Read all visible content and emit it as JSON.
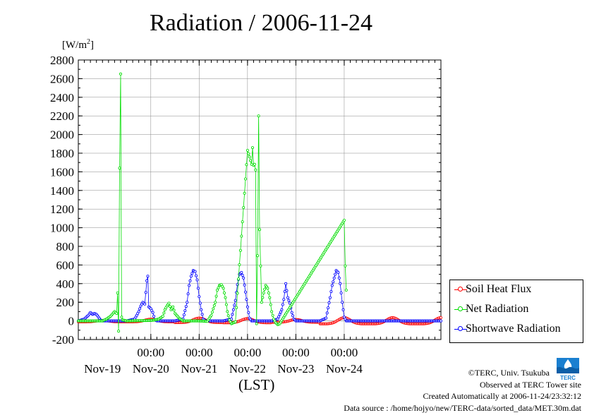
{
  "title": "Radiation / 2006-11-24",
  "unit_label": "[W/m",
  "unit_sup": "2",
  "unit_close": "]",
  "x_axis_label": "(LST)",
  "legend": [
    {
      "name": "Soil Heat Flux",
      "color": "#ff0000"
    },
    {
      "name": "Net Radiation",
      "color": "#00dd00"
    },
    {
      "name": "Shortwave Radiation",
      "color": "#0000ff"
    }
  ],
  "credits": {
    "copyright": "©TERC, Univ. Tsukuba",
    "observed": "Observed at TERC Tower site",
    "created": "Created Automatically at 2006-11-24/23:32:12",
    "source": "Data source : /home/hojyo/new/TERC-data/sorted_data/MET.30m.dat"
  },
  "logo_text": "TERC",
  "chart_data": {
    "type": "line",
    "title": "Radiation / 2006-11-24",
    "ylabel": "[W/m2]",
    "xlabel": "(LST)",
    "ylim": [
      -200,
      2800
    ],
    "yticks": [
      -200,
      0,
      200,
      400,
      600,
      800,
      1000,
      1200,
      1400,
      1600,
      1800,
      2000,
      2200,
      2400,
      2600,
      2800
    ],
    "xlim_hours": [
      -12,
      168
    ],
    "time_ticks": [
      "00:00",
      "00:00",
      "00:00",
      "00:00",
      "00:00"
    ],
    "day_labels": [
      "Nov-19",
      "Nov-20",
      "Nov-21",
      "Nov-22",
      "Nov-23",
      "Nov-24"
    ],
    "grid": true,
    "legend_position": "right",
    "series": [
      {
        "name": "Soil Heat Flux",
        "color": "#ff0000",
        "peaks": [
          {
            "day": 0,
            "peak": 5,
            "base": -10
          },
          {
            "day": 1,
            "peak": 18,
            "base": -10
          },
          {
            "day": 2,
            "peak": 30,
            "base": -18
          },
          {
            "day": 3,
            "peak": 25,
            "base": -20
          },
          {
            "day": 4,
            "peak": 15,
            "base": -15
          },
          {
            "day": 5,
            "peak": 35,
            "base": -32
          }
        ]
      },
      {
        "name": "Net Radiation",
        "color": "#00dd00",
        "points": [
          [
            -12,
            0
          ],
          [
            0,
            0
          ],
          [
            2,
            20
          ],
          [
            4,
            50
          ],
          [
            6,
            100
          ],
          [
            7,
            80
          ],
          [
            7.5,
            300
          ],
          [
            8,
            -110
          ],
          [
            8.5,
            1640
          ],
          [
            9,
            2650
          ],
          [
            9.5,
            40
          ],
          [
            10,
            10
          ],
          [
            12,
            0
          ],
          [
            24,
            5
          ],
          [
            26,
            10
          ],
          [
            28,
            20
          ],
          [
            30,
            50
          ],
          [
            31,
            120
          ],
          [
            32,
            160
          ],
          [
            33,
            190
          ],
          [
            34,
            120
          ],
          [
            35,
            150
          ],
          [
            36,
            80
          ],
          [
            38,
            30
          ],
          [
            40,
            0
          ],
          [
            48,
            0
          ],
          [
            52,
            -5
          ],
          [
            54,
            60
          ],
          [
            56,
            200
          ],
          [
            57,
            330
          ],
          [
            58,
            380
          ],
          [
            59,
            390
          ],
          [
            60,
            350
          ],
          [
            61,
            250
          ],
          [
            62,
            100
          ],
          [
            63,
            10
          ],
          [
            64,
            -30
          ],
          [
            66,
            -10
          ],
          [
            72,
            1830
          ],
          [
            73,
            1760
          ],
          [
            74,
            1680
          ],
          [
            74.5,
            1860
          ],
          [
            75,
            1670
          ],
          [
            75.5,
            1680
          ],
          [
            76,
            1620
          ],
          [
            76.5,
            -30
          ],
          [
            77,
            700
          ],
          [
            77.5,
            2200
          ],
          [
            78,
            980
          ],
          [
            79,
            200
          ],
          [
            80,
            300
          ],
          [
            81,
            380
          ],
          [
            82,
            350
          ],
          [
            83,
            250
          ],
          [
            84,
            100
          ],
          [
            85,
            20
          ],
          [
            86,
            -20
          ],
          [
            87,
            -40
          ],
          [
            88,
            -30
          ],
          [
            120,
            1080
          ],
          [
            120.5,
            590
          ],
          [
            121,
            330
          ]
        ]
      },
      {
        "name": "Shortwave Radiation",
        "color": "#0000ff",
        "days": [
          {
            "day": 0,
            "points": [
              [
                0,
                0
              ],
              [
                3,
                20
              ],
              [
                5,
                60
              ],
              [
                6,
                90
              ],
              [
                7,
                70
              ],
              [
                8,
                80
              ],
              [
                9,
                70
              ],
              [
                10,
                40
              ],
              [
                11,
                10
              ],
              [
                12,
                0
              ]
            ]
          },
          {
            "day": 1,
            "points": [
              [
                0,
                0
              ],
              [
                4,
                20
              ],
              [
                6,
                100
              ],
              [
                7,
                160
              ],
              [
                8,
                200
              ],
              [
                9,
                180
              ],
              [
                10,
                430
              ],
              [
                10.5,
                480
              ],
              [
                11,
                150
              ],
              [
                12,
                130
              ],
              [
                13,
                90
              ],
              [
                14,
                10
              ],
              [
                15,
                0
              ]
            ]
          },
          {
            "day": 2,
            "points": [
              [
                0,
                0
              ],
              [
                4,
                20
              ],
              [
                6,
                200
              ],
              [
                7,
                380
              ],
              [
                8,
                480
              ],
              [
                9,
                540
              ],
              [
                10,
                530
              ],
              [
                11,
                440
              ],
              [
                12,
                260
              ],
              [
                13,
                120
              ],
              [
                14,
                20
              ],
              [
                15,
                0
              ]
            ]
          },
          {
            "day": 3,
            "points": [
              [
                0,
                0
              ],
              [
                4,
                20
              ],
              [
                6,
                220
              ],
              [
                7,
                390
              ],
              [
                8,
                500
              ],
              [
                9,
                520
              ],
              [
                10,
                460
              ],
              [
                11,
                310
              ],
              [
                12,
                150
              ],
              [
                13,
                30
              ],
              [
                14,
                0
              ]
            ]
          },
          {
            "day": 4,
            "points": [
              [
                0,
                0
              ],
              [
                3,
                20
              ],
              [
                5,
                120
              ],
              [
                6,
                230
              ],
              [
                7,
                400
              ],
              [
                8,
                250
              ],
              [
                9,
                190
              ],
              [
                10,
                90
              ],
              [
                11,
                20
              ],
              [
                12,
                0
              ]
            ]
          },
          {
            "day": 5,
            "points": [
              [
                0,
                0
              ],
              [
                3,
                30
              ],
              [
                5,
                250
              ],
              [
                6,
                380
              ],
              [
                7,
                460
              ],
              [
                8,
                540
              ],
              [
                9,
                520
              ],
              [
                10,
                400
              ],
              [
                11,
                200
              ],
              [
                12,
                40
              ],
              [
                13,
                0
              ]
            ]
          }
        ]
      }
    ]
  }
}
